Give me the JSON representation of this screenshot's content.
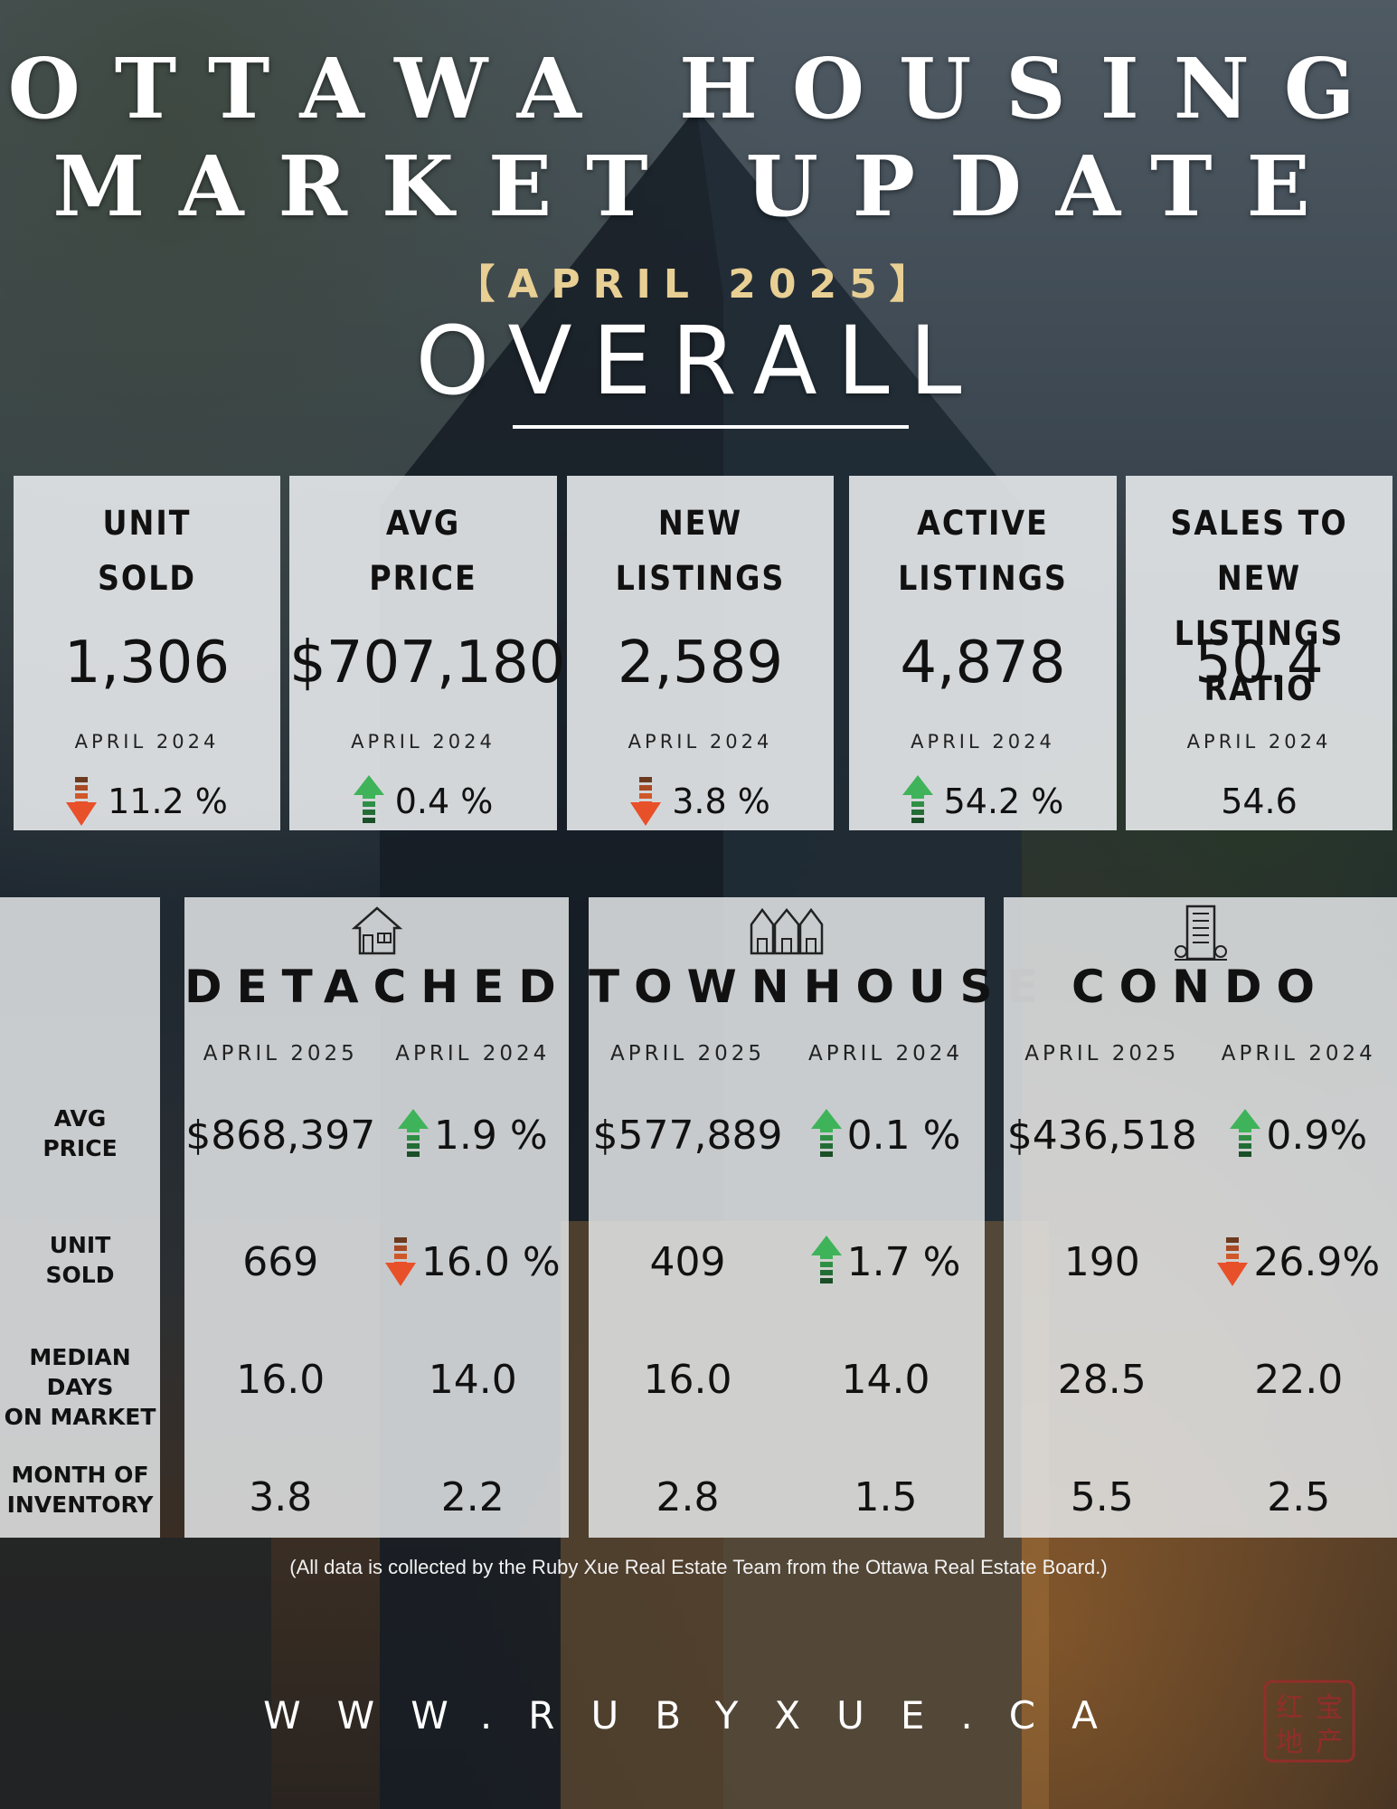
{
  "header": {
    "title_line1": "OTTAWA HOUSING",
    "title_line2": "MARKET UPDATE",
    "period": "【APRIL 2025】",
    "section": "OVERALL"
  },
  "overall": [
    {
      "label1": "UNIT",
      "label2": "SOLD",
      "value": "1,306",
      "compare_label": "APRIL 2024",
      "change": "11.2 %",
      "direction": "down"
    },
    {
      "label1": "AVG",
      "label2": "PRICE",
      "value": "$707,180",
      "compare_label": "APRIL 2024",
      "change": "0.4 %",
      "direction": "up"
    },
    {
      "label1": "NEW",
      "label2": "LISTINGS",
      "value": "2,589",
      "compare_label": "APRIL 2024",
      "change": "3.8 %",
      "direction": "down"
    },
    {
      "label1": "ACTIVE",
      "label2": "LISTINGS",
      "value": "4,878",
      "compare_label": "APRIL 2024",
      "change": "54.2 %",
      "direction": "up"
    },
    {
      "label1": "SALES TO NEW",
      "label2": "LISTINGS RATIO",
      "value": "50.4",
      "compare_label": "APRIL 2024",
      "change": "54.6",
      "direction": "none"
    }
  ],
  "row_labels": [
    {
      "line1": "AVG",
      "line2": "PRICE"
    },
    {
      "line1": "UNIT",
      "line2": "SOLD"
    },
    {
      "line1": "MEDIAN DAYS",
      "line2": "ON MARKET"
    },
    {
      "line1": "MONTH OF",
      "line2": "INVENTORY"
    }
  ],
  "segments": [
    {
      "name": "DETACHED",
      "icon": "house-icon",
      "col1": "APRIL 2025",
      "col2": "APRIL 2024",
      "avg_price": "$868,397",
      "avg_price_change": "1.9 %",
      "avg_price_dir": "up",
      "unit_sold": "669",
      "unit_sold_change": "16.0 %",
      "unit_sold_dir": "down",
      "dom_2025": "16.0",
      "dom_2024": "14.0",
      "moi_2025": "3.8",
      "moi_2024": "2.2"
    },
    {
      "name": "TOWNHOUSE",
      "icon": "townhouse-icon",
      "col1": "APRIL 2025",
      "col2": "APRIL 2024",
      "avg_price": "$577,889",
      "avg_price_change": "0.1 %",
      "avg_price_dir": "up",
      "unit_sold": "409",
      "unit_sold_change": "1.7 %",
      "unit_sold_dir": "up",
      "dom_2025": "16.0",
      "dom_2024": "14.0",
      "moi_2025": "2.8",
      "moi_2024": "1.5"
    },
    {
      "name": "CONDO",
      "icon": "condo-building-icon",
      "col1": "APRIL 2025",
      "col2": "APRIL 2024",
      "avg_price": "$436,518",
      "avg_price_change": "0.9%",
      "avg_price_dir": "up",
      "unit_sold": "190",
      "unit_sold_change": "26.9%",
      "unit_sold_dir": "down",
      "dom_2025": "28.5",
      "dom_2024": "22.0",
      "moi_2025": "5.5",
      "moi_2024": "2.5"
    }
  ],
  "footnote": "(All data is collected by the Ruby Xue Real Estate Team from the Ottawa Real Estate Board.)",
  "website": "WWW.RUBYXUE.CA",
  "seal_text": "红宝地产",
  "colors": {
    "up_arrow": "#3fb35a",
    "down_arrow": "#e8502a",
    "period_gold": "#e8cf94",
    "seal_red": "#9b2b2b"
  }
}
